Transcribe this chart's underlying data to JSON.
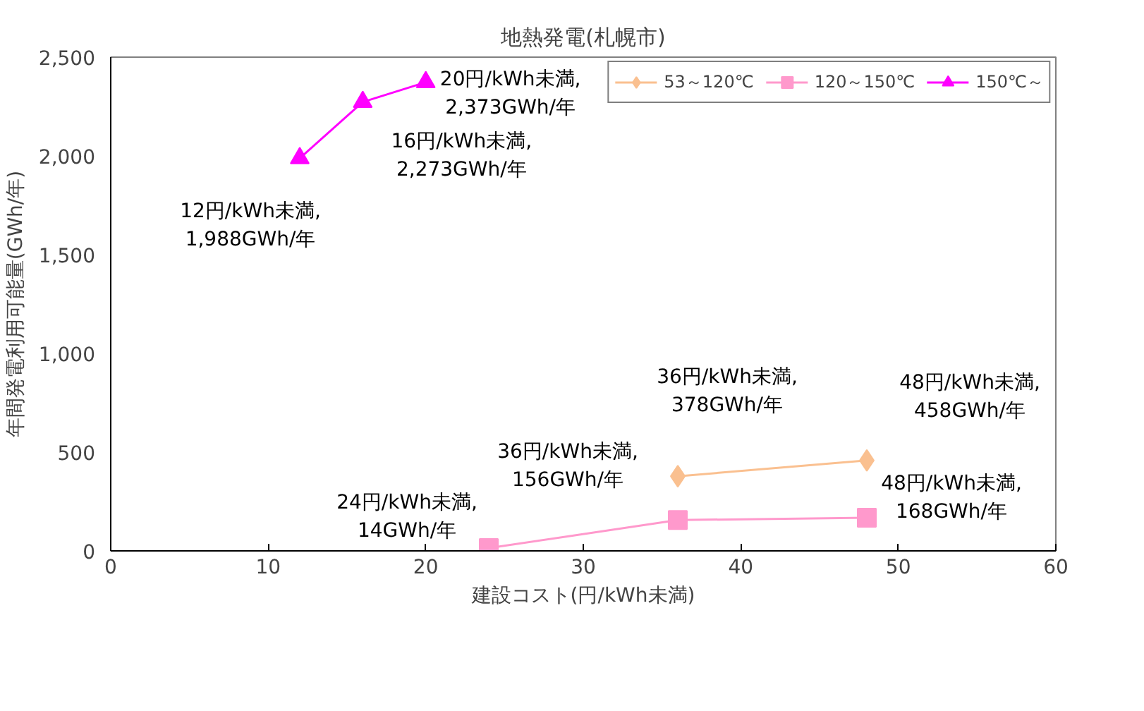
{
  "chart_data": {
    "type": "line",
    "title": "地熱発電(札幌市)",
    "xlabel": "建設コスト(円/kWh未満)",
    "ylabel": "年間発電利用可能量(GWh/年)",
    "xlim": [
      0,
      60
    ],
    "xticks": [
      0,
      10,
      20,
      30,
      40,
      50,
      60
    ],
    "ylim": [
      0,
      2500
    ],
    "yticks": [
      {
        "value": 0,
        "label": "0"
      },
      {
        "value": 500,
        "label": "500"
      },
      {
        "value": 1000,
        "label": "1,000"
      },
      {
        "value": 1500,
        "label": "1,500"
      },
      {
        "value": 2000,
        "label": "2,000"
      },
      {
        "value": 2500,
        "label": "2,500"
      }
    ],
    "grid": false,
    "legend": "top",
    "series": [
      {
        "name": "53～120℃",
        "color": "#fac090",
        "marker": "diamond",
        "x": [
          36,
          48
        ],
        "values": [
          378,
          458
        ],
        "value_labels": [
          "36円/kWh未満,\n378GWh/年",
          "48円/kWh未満,\n458GWh/年"
        ]
      },
      {
        "name": "120～150℃",
        "color": "#ff99cc",
        "marker": "square",
        "x": [
          24,
          36,
          48
        ],
        "values": [
          14,
          156,
          168
        ],
        "value_labels": [
          "24円/kWh未満,\n14GWh/年",
          "36円/kWh未満,\n156GWh/年",
          "48円/kWh未満,\n168GWh/年"
        ]
      },
      {
        "name": "150℃～",
        "color": "#ff00ff",
        "marker": "triangle",
        "x": [
          12,
          16,
          20
        ],
        "values": [
          1988,
          2273,
          2373
        ],
        "value_labels": [
          "12円/kWh未満,\n1,988GWh/年",
          "16円/kWh未満,\n2,273GWh/年",
          "20円/kWh未満,\n2,373GWh/年"
        ]
      }
    ]
  }
}
